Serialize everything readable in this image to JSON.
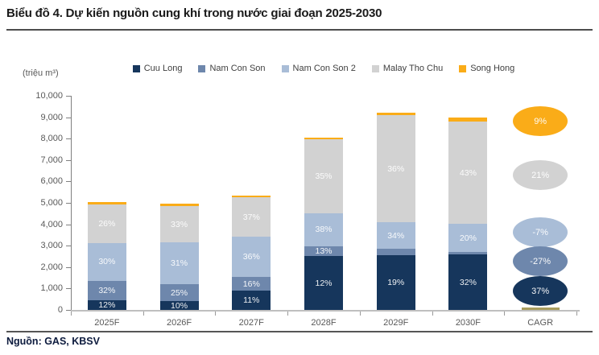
{
  "header": {
    "title": "Biểu đồ 4. Dự kiến nguồn cung khí trong nước giai đoạn 2025-2030"
  },
  "footer": {
    "source": "Nguồn: GAS, KBSV"
  },
  "chart_data": {
    "type": "bar",
    "stacked": true,
    "title": "Dự kiến nguồn cung khí trong nước giai đoạn 2025-2030",
    "unit_label": "(triệu m³)",
    "grid": false,
    "legend_position": "top-center",
    "ylim": [
      0,
      10000
    ],
    "ytick_step": 1000,
    "yticks": [
      "0",
      "1,000",
      "2,000",
      "3,000",
      "4,000",
      "5,000",
      "6,000",
      "7,000",
      "8,000",
      "9,000",
      "10,000"
    ],
    "categories": [
      "2025F",
      "2026F",
      "2027F",
      "2028F",
      "2029F",
      "2030F",
      "CAGR"
    ],
    "series": [
      {
        "name": "Cuu Long",
        "color": "#16365C",
        "values": [
          440,
          410,
          915,
          2505,
          2570,
          2595
        ],
        "labels": [
          "12%",
          "10%",
          "11%",
          "12%",
          "19%",
          "32%"
        ]
      },
      {
        "name": "Nam Con Son",
        "color": "#6E87AC",
        "values": [
          900,
          800,
          650,
          440,
          315,
          115
        ],
        "labels": [
          "32%",
          "25%",
          "16%",
          "13%",
          "",
          ""
        ]
      },
      {
        "name": "Nam Con Son 2",
        "color": "#A9BDD7",
        "values": [
          1810,
          1960,
          1880,
          1570,
          1230,
          1330
        ],
        "labels": [
          "30%",
          "31%",
          "36%",
          "38%",
          "34%",
          "20%"
        ]
      },
      {
        "name": "Malay Tho Chu",
        "color": "#D2D2D2",
        "values": [
          1800,
          1680,
          1855,
          3445,
          5000,
          4760
        ],
        "labels": [
          "26%",
          "33%",
          "37%",
          "35%",
          "36%",
          "43%"
        ]
      },
      {
        "name": "Song Hong",
        "color": "#FAAC18",
        "values": [
          100,
          100,
          90,
          85,
          120,
          175
        ],
        "labels": [
          "",
          "",
          "",
          "",
          "",
          ""
        ]
      }
    ],
    "bar_totals": [
      5050,
      4950,
      5390,
      8045,
      9235,
      8975
    ],
    "cagr_column": {
      "category": "CAGR",
      "ellipses": [
        {
          "name": "Song Hong",
          "label": "9%",
          "color": "#FAAC18",
          "top_offset": 13
        },
        {
          "name": "Malay Tho Chu",
          "label": "21%",
          "color": "#D2D2D2",
          "top_offset": 80
        },
        {
          "name": "Nam Con Son 2",
          "label": "-7%",
          "color": "#A9BDD7",
          "top_offset": 151
        },
        {
          "name": "Nam Con Son",
          "label": "-27%",
          "color": "#6E87AC",
          "top_offset": 187
        },
        {
          "name": "Cuu Long",
          "label": "37%",
          "color": "#16365C",
          "top_offset": 224
        }
      ],
      "baseline_bar": {
        "name": "Song Hong",
        "color": "#A89D5E",
        "height": 3,
        "width": 47
      }
    }
  }
}
